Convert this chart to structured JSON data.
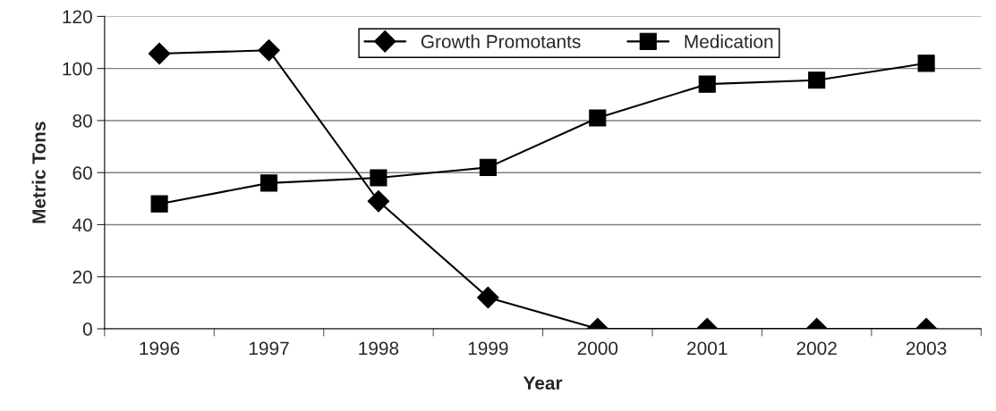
{
  "chart_data": {
    "type": "line",
    "xlabel": "Year",
    "ylabel": "Metric Tons",
    "categories": [
      "1996",
      "1997",
      "1998",
      "1999",
      "2000",
      "2001",
      "2002",
      "2003"
    ],
    "series": [
      {
        "name": "Growth Promotants",
        "color": "#000000",
        "marker": "diamond",
        "values": [
          105.7,
          107,
          49,
          12,
          0,
          0,
          0,
          0
        ]
      },
      {
        "name": "Medication",
        "color": "#000000",
        "marker": "square",
        "values": [
          48,
          56,
          58,
          62,
          81,
          94,
          95.5,
          102
        ]
      }
    ],
    "ylim": [
      0,
      120
    ],
    "yticks": [
      0,
      20,
      40,
      60,
      80,
      100,
      120
    ],
    "grid": "y",
    "legend": "top",
    "line_style": "solid"
  }
}
